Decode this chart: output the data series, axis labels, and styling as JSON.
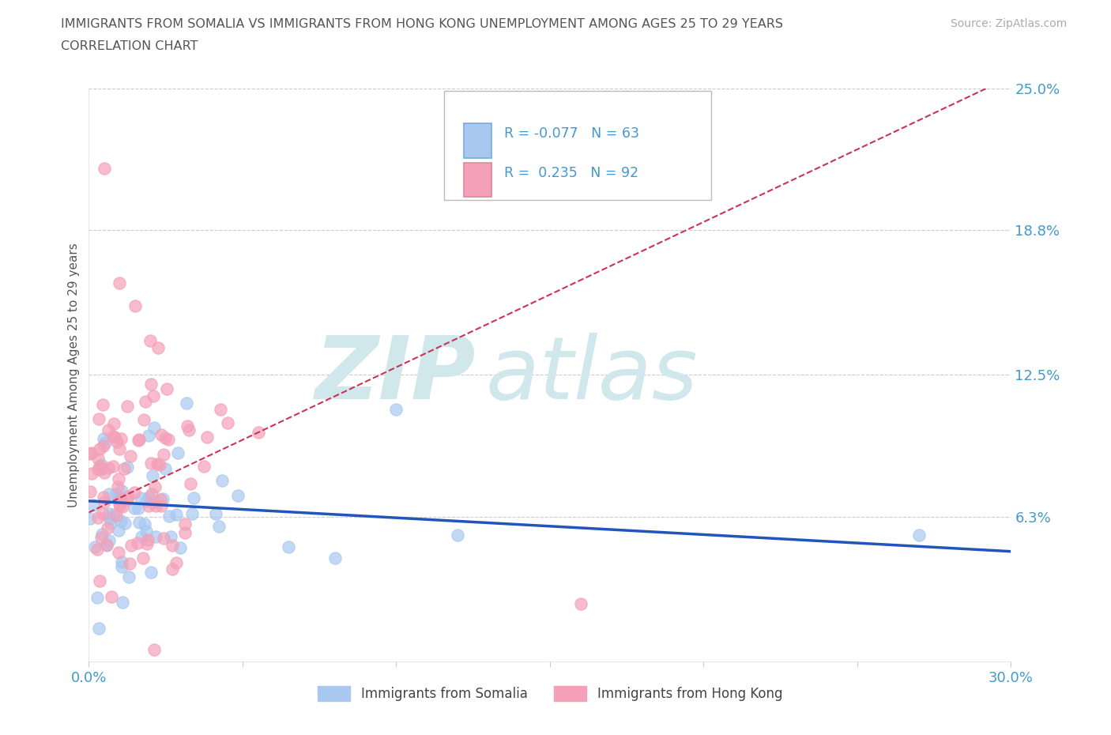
{
  "title_line1": "IMMIGRANTS FROM SOMALIA VS IMMIGRANTS FROM HONG KONG UNEMPLOYMENT AMONG AGES 25 TO 29 YEARS",
  "title_line2": "CORRELATION CHART",
  "source_text": "Source: ZipAtlas.com",
  "ylabel": "Unemployment Among Ages 25 to 29 years",
  "xlim": [
    0.0,
    30.0
  ],
  "ylim": [
    0.0,
    25.0
  ],
  "ytick_vals": [
    6.3,
    12.5,
    18.8,
    25.0
  ],
  "ytick_labels": [
    "6.3%",
    "12.5%",
    "18.8%",
    "25.0%"
  ],
  "xtick_vals": [
    0.0,
    5.0,
    10.0,
    15.0,
    20.0,
    25.0,
    30.0
  ],
  "xtick_labels": [
    "0.0%",
    "",
    "",
    "",
    "",
    "",
    "30.0%"
  ],
  "somalia_color": "#a8c8f0",
  "hongkong_color": "#f4a0b8",
  "somalia_R": -0.077,
  "somalia_N": 63,
  "hongkong_R": 0.235,
  "hongkong_N": 92,
  "trend_somalia_color": "#2255bb",
  "trend_hongkong_color": "#cc3355",
  "background_color": "#ffffff",
  "grid_color": "#cccccc",
  "tick_color": "#4499cc",
  "title_color": "#555555",
  "watermark_zip": "ZIP",
  "watermark_atlas": "atlas",
  "watermark_color": "#d0e8ec",
  "legend_label_somalia": "Immigrants from Somalia",
  "legend_label_hongkong": "Immigrants from Hong Kong",
  "somalia_trend_start_y": 7.0,
  "somalia_trend_end_y": 4.8,
  "hongkong_trend_start_y": 6.5,
  "hongkong_trend_end_y": 25.5
}
